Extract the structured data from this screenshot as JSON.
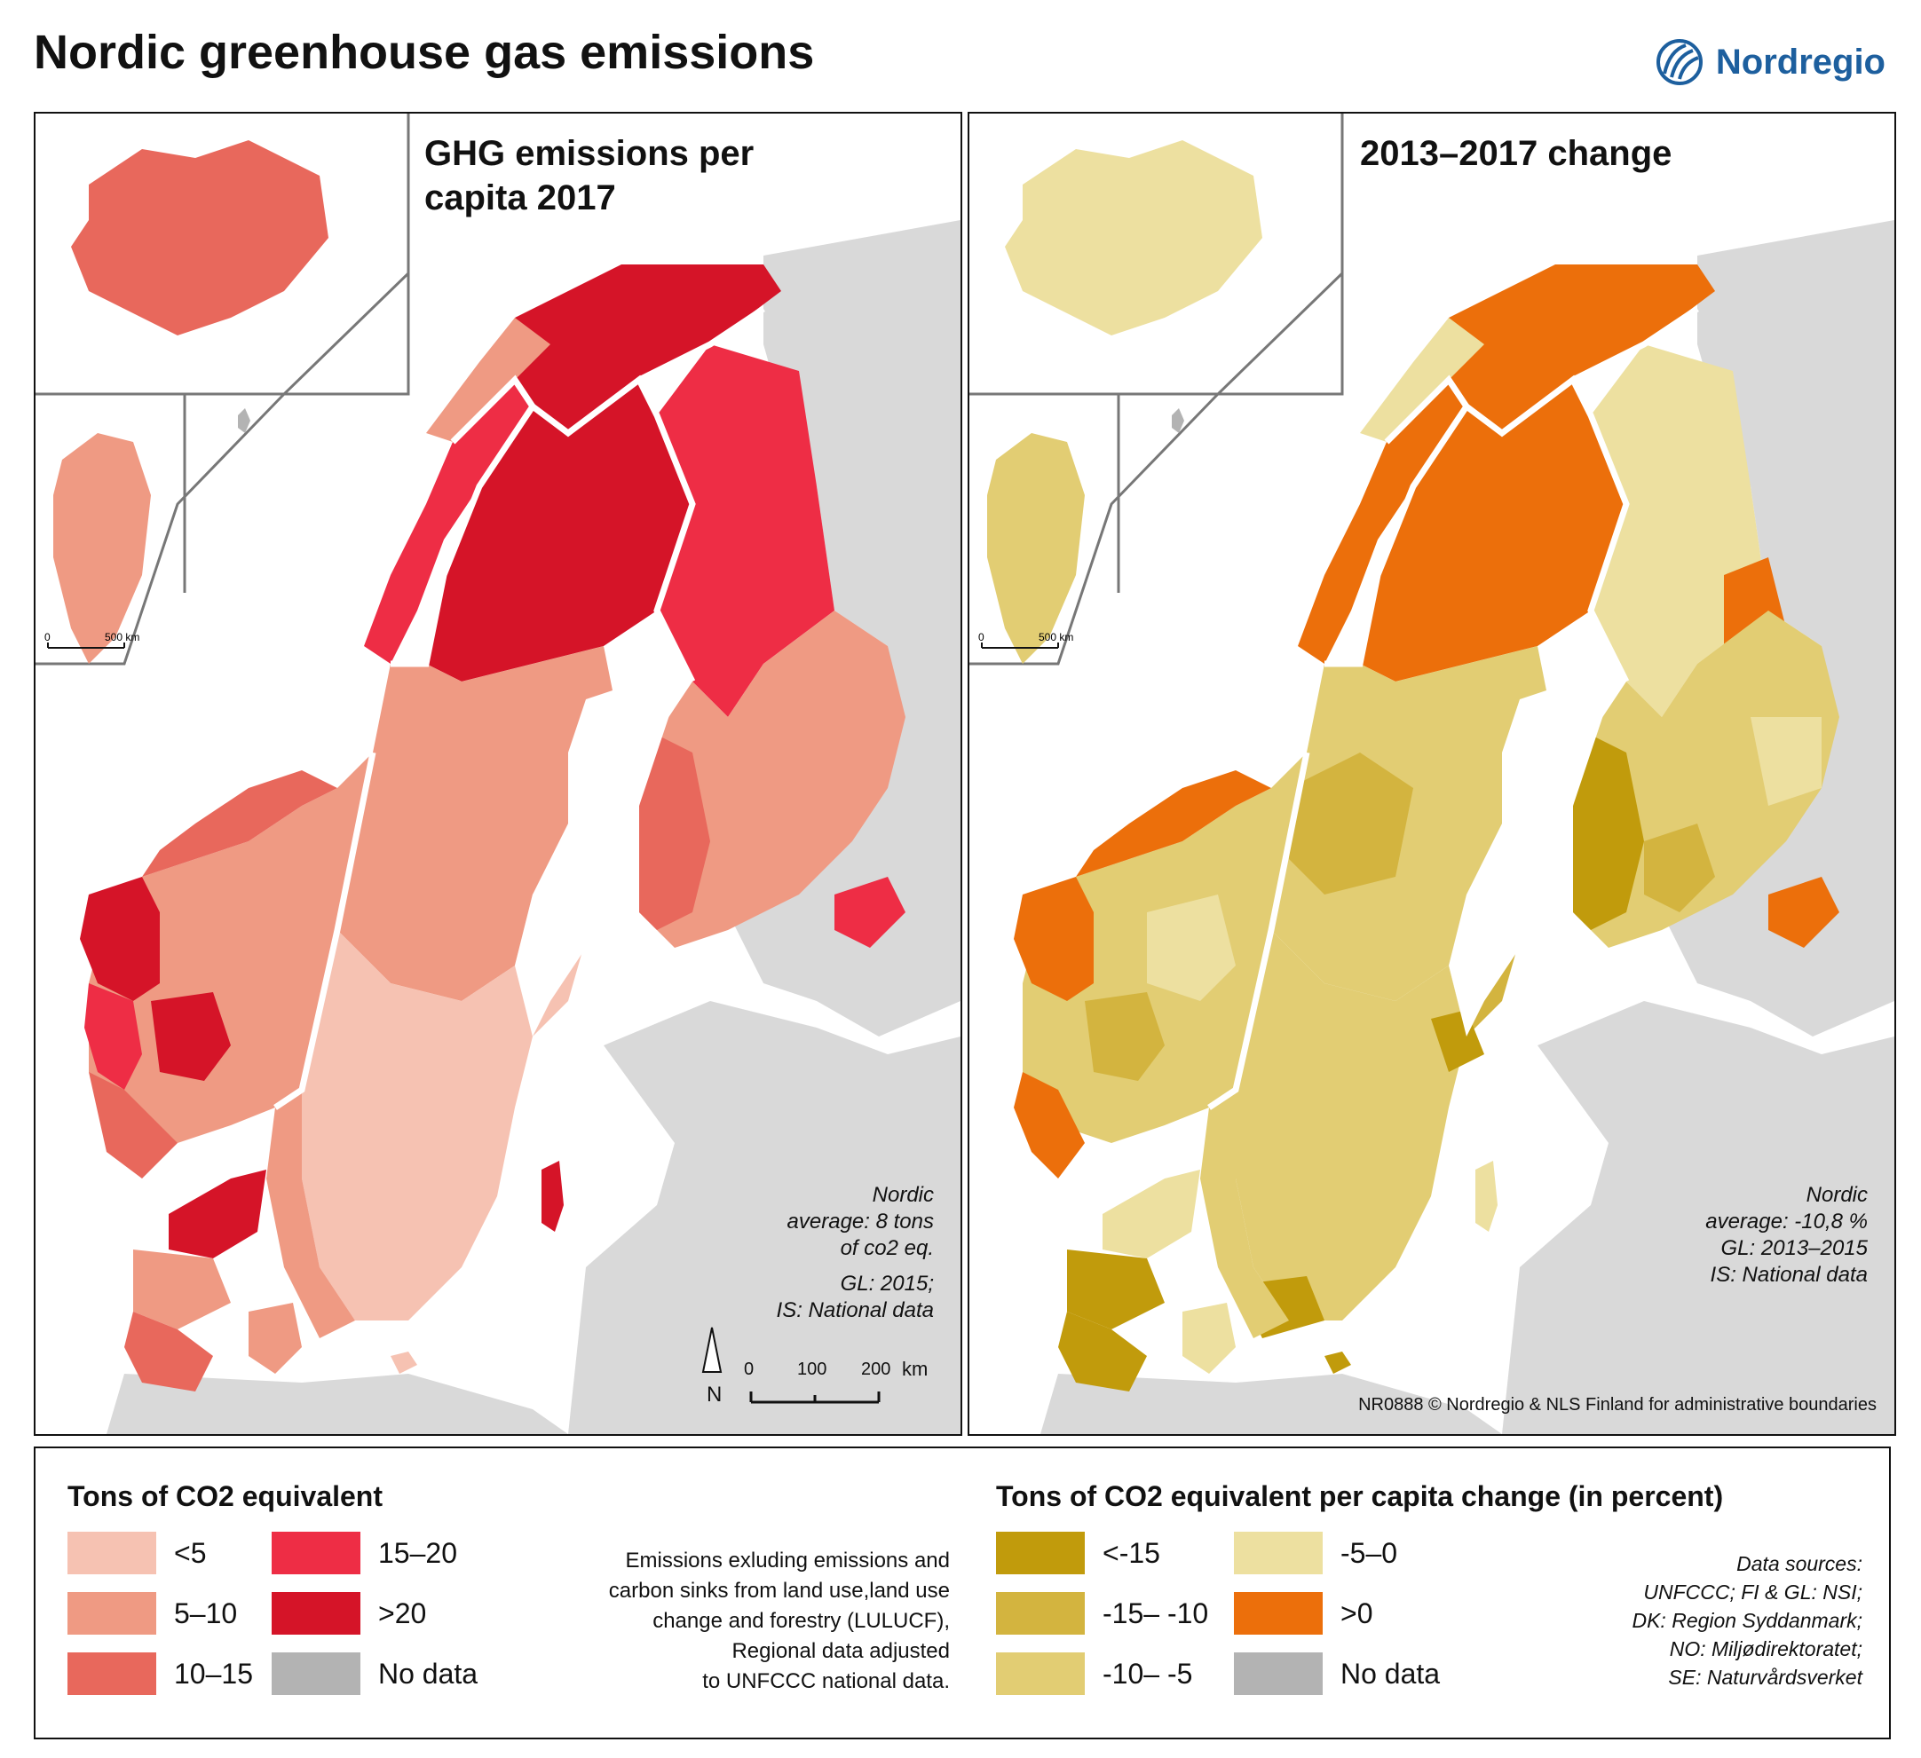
{
  "title": "Nordic greenhouse gas emissions",
  "brand": {
    "name": "Nordregio",
    "color": "#1d5f9e"
  },
  "left_map": {
    "heading_line1": "GHG emissions per",
    "heading_line2": "capita 2017",
    "notes": [
      "Nordic",
      "average: 8 tons",
      "of co2 eq.",
      "GL: 2015;",
      "IS: National data"
    ],
    "scale": {
      "ticks": [
        "0",
        "100",
        "200"
      ],
      "unit": "km"
    },
    "north": "N",
    "inset_scale": {
      "ticks": [
        "0",
        "500 km"
      ]
    }
  },
  "right_map": {
    "heading": "2013–2017 change",
    "notes": [
      "Nordic",
      "average: -10,8 %",
      "GL: 2013–2015",
      "IS: National data"
    ],
    "credit": "NR0888  © Nordregio & NLS Finland for administrative boundaries",
    "inset_scale": {
      "ticks": [
        "0",
        "500 km"
      ]
    }
  },
  "legend": {
    "left_title": "Tons of CO2 equivalent",
    "left_classes": [
      {
        "label": "<5",
        "color": "#f6c2b2"
      },
      {
        "label": "5–10",
        "color": "#ef9a83"
      },
      {
        "label": "10–15",
        "color": "#e8685c"
      },
      {
        "label": "15–20",
        "color": "#ee2d45"
      },
      {
        "label": ">20",
        "color": "#d51428"
      },
      {
        "label": "No data",
        "color": "#b3b3b3"
      }
    ],
    "note_lines": [
      "Emissions exluding emissions and",
      "carbon sinks from land use,land use",
      "change and forestry (LULUCF),",
      "Regional data adjusted",
      "to UNFCCC national data."
    ],
    "right_title": "Tons of CO2 equivalent per capita change (in percent)",
    "right_classes": [
      {
        "label": "<-15",
        "color": "#c19b0c"
      },
      {
        "label": "-15– -10",
        "color": "#d3b43f"
      },
      {
        "label": "-10– -5",
        "color": "#e2cd73"
      },
      {
        "label": "-5–0",
        "color": "#ede0a0"
      },
      {
        "label": ">0",
        "color": "#ec6f0b"
      },
      {
        "label": "No data",
        "color": "#b3b3b3"
      }
    ],
    "sources": [
      "Data sources:",
      "UNFCCC; FI & GL: NSI;",
      "DK: Region Syddanmark;",
      "NO: Miljødirektoratet;",
      "SE: Naturvårdsverket"
    ]
  }
}
